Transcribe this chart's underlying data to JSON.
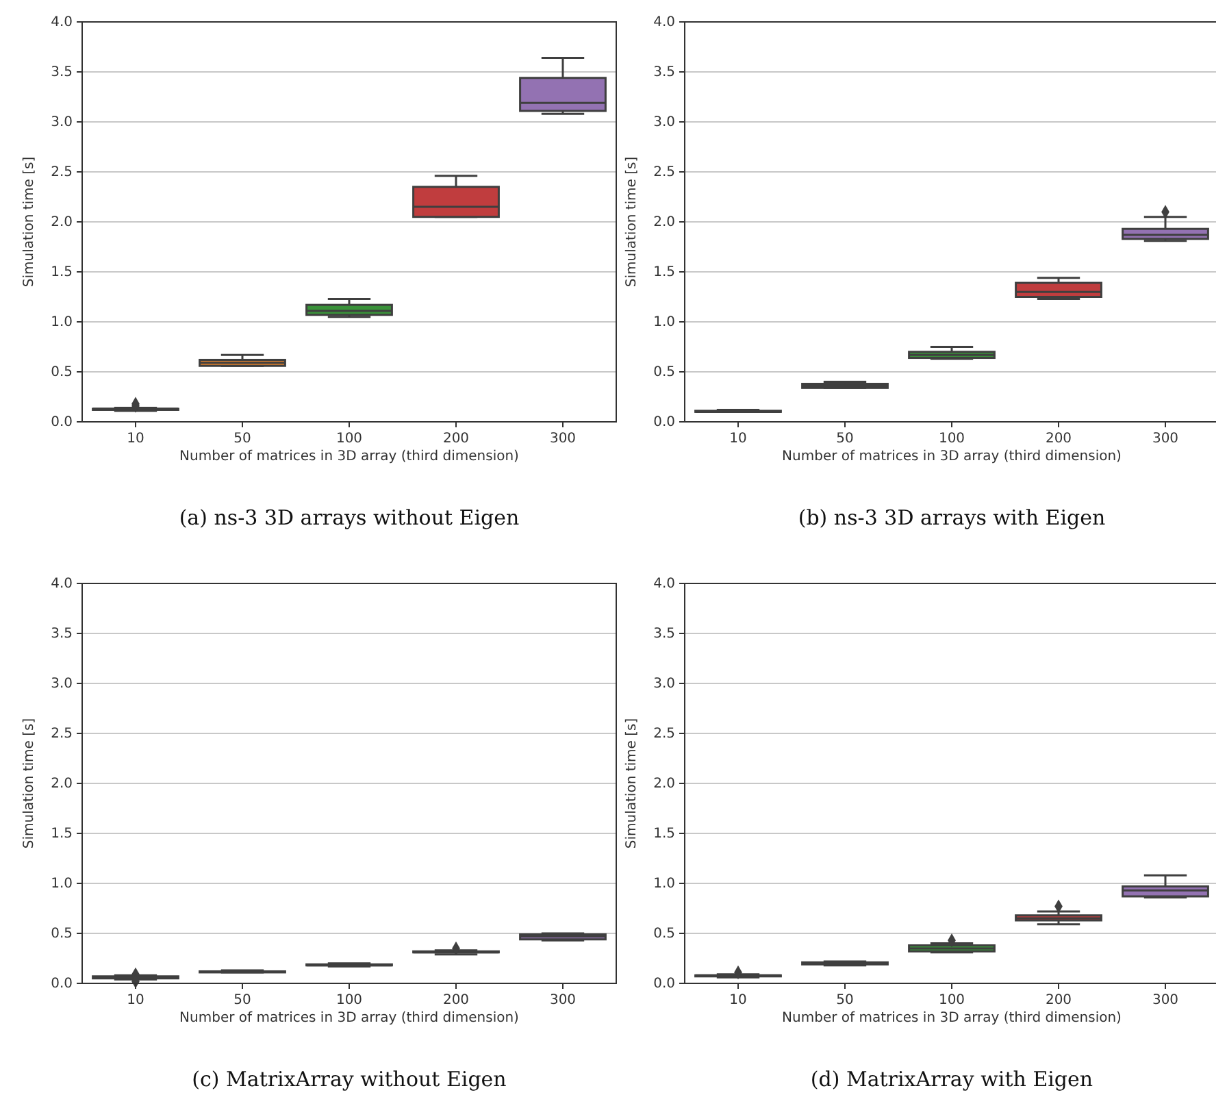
{
  "chart_data": [
    {
      "type": "box",
      "title": "(a) ns-3 3D arrays without Eigen",
      "xlabel": "Number of matrices in 3D array (third dimension)",
      "ylabel": "Simulation time [s]",
      "categories": [
        "10",
        "50",
        "100",
        "200",
        "300"
      ],
      "colors": [
        "#3a75af",
        "#e1812c",
        "#3a923a",
        "#c03d3e",
        "#9372b2"
      ],
      "ylim": [
        0,
        4
      ],
      "yticks": [
        {
          "value": 0,
          "label": "0.0"
        },
        {
          "value": 0.5,
          "label": "0.5"
        },
        {
          "value": 1,
          "label": "1.0"
        },
        {
          "value": 1.5,
          "label": "1.5"
        },
        {
          "value": 2,
          "label": "2.0"
        },
        {
          "value": 2.5,
          "label": "2.5"
        },
        {
          "value": 3,
          "label": "3.0"
        },
        {
          "value": 3.5,
          "label": "3.5"
        },
        {
          "value": 4,
          "label": "4.0"
        }
      ],
      "grid": "y",
      "boxes": [
        {
          "low": 0.11,
          "q1": 0.12,
          "median": 0.13,
          "q3": 0.13,
          "high": 0.14,
          "outliers": [
            0.16,
            0.18
          ]
        },
        {
          "low": 0.56,
          "q1": 0.56,
          "median": 0.59,
          "q3": 0.62,
          "high": 0.67
        },
        {
          "low": 1.05,
          "q1": 1.07,
          "median": 1.11,
          "q3": 1.17,
          "high": 1.23
        },
        {
          "low": 2.05,
          "q1": 2.05,
          "median": 2.15,
          "q3": 2.35,
          "high": 2.46
        },
        {
          "low": 3.08,
          "q1": 3.11,
          "median": 3.19,
          "q3": 3.44,
          "high": 3.64
        }
      ]
    },
    {
      "type": "box",
      "title": "(b) ns-3 3D arrays with Eigen",
      "xlabel": "Number of matrices in 3D array (third dimension)",
      "ylabel": "Simulation time [s]",
      "categories": [
        "10",
        "50",
        "100",
        "200",
        "300"
      ],
      "colors": [
        "#3a75af",
        "#e1812c",
        "#3a923a",
        "#c03d3e",
        "#9372b2"
      ],
      "ylim": [
        0,
        4
      ],
      "yticks": [
        {
          "value": 0,
          "label": "0.0"
        },
        {
          "value": 0.5,
          "label": "0.5"
        },
        {
          "value": 1,
          "label": "1.0"
        },
        {
          "value": 1.5,
          "label": "1.5"
        },
        {
          "value": 2,
          "label": "2.0"
        },
        {
          "value": 2.5,
          "label": "2.5"
        },
        {
          "value": 3,
          "label": "3.0"
        },
        {
          "value": 3.5,
          "label": "3.5"
        },
        {
          "value": 4,
          "label": "4.0"
        }
      ],
      "grid": "y",
      "boxes": [
        {
          "low": 0.1,
          "q1": 0.1,
          "median": 0.1,
          "q3": 0.11,
          "high": 0.12
        },
        {
          "low": 0.34,
          "q1": 0.34,
          "median": 0.36,
          "q3": 0.38,
          "high": 0.4
        },
        {
          "low": 0.63,
          "q1": 0.64,
          "median": 0.67,
          "q3": 0.7,
          "high": 0.75
        },
        {
          "low": 1.23,
          "q1": 1.25,
          "median": 1.3,
          "q3": 1.39,
          "high": 1.44
        },
        {
          "low": 1.81,
          "q1": 1.83,
          "median": 1.87,
          "q3": 1.93,
          "high": 2.05,
          "outliers": [
            2.1
          ]
        }
      ]
    },
    {
      "type": "box",
      "title": "(c) MatrixArray without Eigen",
      "xlabel": "Number of matrices in 3D array (third dimension)",
      "ylabel": "Simulation time [s]",
      "categories": [
        "10",
        "50",
        "100",
        "200",
        "300"
      ],
      "colors": [
        "#3a75af",
        "#e1812c",
        "#3a923a",
        "#c03d3e",
        "#9372b2"
      ],
      "ylim": [
        0,
        4
      ],
      "yticks": [
        {
          "value": 0,
          "label": "0.0"
        },
        {
          "value": 0.5,
          "label": "0.5"
        },
        {
          "value": 1,
          "label": "1.0"
        },
        {
          "value": 1.5,
          "label": "1.5"
        },
        {
          "value": 2,
          "label": "2.0"
        },
        {
          "value": 2.5,
          "label": "2.5"
        },
        {
          "value": 3,
          "label": "3.0"
        },
        {
          "value": 3.5,
          "label": "3.5"
        },
        {
          "value": 4,
          "label": "4.0"
        }
      ],
      "grid": "y",
      "boxes": [
        {
          "low": 0.04,
          "q1": 0.05,
          "median": 0.06,
          "q3": 0.07,
          "high": 0.08,
          "outliers": [
            0.09,
            0.02
          ]
        },
        {
          "low": 0.11,
          "q1": 0.11,
          "median": 0.12,
          "q3": 0.12,
          "high": 0.13
        },
        {
          "low": 0.17,
          "q1": 0.18,
          "median": 0.18,
          "q3": 0.19,
          "high": 0.2
        },
        {
          "low": 0.29,
          "q1": 0.31,
          "median": 0.31,
          "q3": 0.32,
          "high": 0.33,
          "outliers": [
            0.35
          ]
        },
        {
          "low": 0.43,
          "q1": 0.44,
          "median": 0.47,
          "q3": 0.49,
          "high": 0.5
        }
      ]
    },
    {
      "type": "box",
      "title": "(d) MatrixArray with Eigen",
      "xlabel": "Number of matrices in 3D array (third dimension)",
      "ylabel": "Simulation time [s]",
      "categories": [
        "10",
        "50",
        "100",
        "200",
        "300"
      ],
      "colors": [
        "#3a75af",
        "#e1812c",
        "#3a923a",
        "#c03d3e",
        "#9372b2"
      ],
      "ylim": [
        0,
        4
      ],
      "yticks": [
        {
          "value": 0,
          "label": "0.0"
        },
        {
          "value": 0.5,
          "label": "0.5"
        },
        {
          "value": 1,
          "label": "1.0"
        },
        {
          "value": 1.5,
          "label": "1.5"
        },
        {
          "value": 2,
          "label": "2.0"
        },
        {
          "value": 2.5,
          "label": "2.5"
        },
        {
          "value": 3,
          "label": "3.0"
        },
        {
          "value": 3.5,
          "label": "3.5"
        },
        {
          "value": 4,
          "label": "4.0"
        }
      ],
      "grid": "y",
      "boxes": [
        {
          "low": 0.06,
          "q1": 0.07,
          "median": 0.08,
          "q3": 0.08,
          "high": 0.09,
          "outliers": [
            0.11
          ]
        },
        {
          "low": 0.18,
          "q1": 0.19,
          "median": 0.2,
          "q3": 0.21,
          "high": 0.22
        },
        {
          "low": 0.31,
          "q1": 0.32,
          "median": 0.35,
          "q3": 0.38,
          "high": 0.4,
          "outliers": [
            0.43
          ]
        },
        {
          "low": 0.59,
          "q1": 0.63,
          "median": 0.65,
          "q3": 0.68,
          "high": 0.72,
          "outliers": [
            0.77
          ]
        },
        {
          "low": 0.86,
          "q1": 0.87,
          "median": 0.93,
          "q3": 0.97,
          "high": 1.08
        }
      ]
    }
  ]
}
